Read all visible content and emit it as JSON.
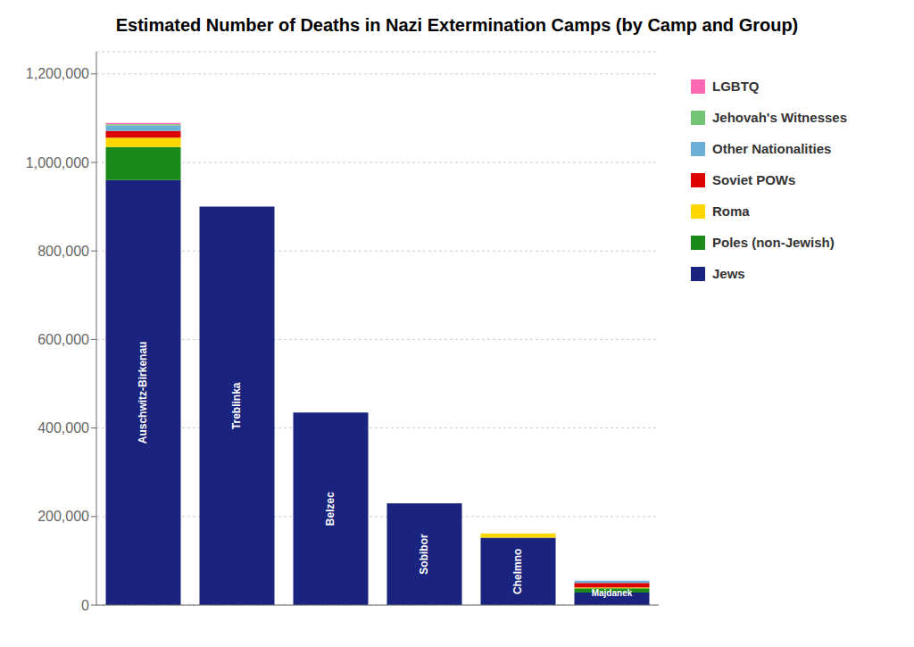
{
  "chart_data": {
    "type": "bar",
    "title": "Estimated Number of Deaths in Nazi Extermination Camps (by Camp and Group)",
    "categories": [
      "Auschwitz-Birkenau",
      "Treblinka",
      "Belzec",
      "Sobibor",
      "Chelmno",
      "Majdanek"
    ],
    "series": [
      {
        "name": "Jews",
        "color": "#1a237e",
        "values": [
          960000,
          900000,
          435000,
          230000,
          152000,
          28000
        ]
      },
      {
        "name": "Poles (non-Jewish)",
        "color": "#1b8a1b",
        "values": [
          75000,
          0,
          0,
          0,
          0,
          10000
        ]
      },
      {
        "name": "Roma",
        "color": "#ffd700",
        "values": [
          21000,
          0,
          0,
          0,
          10000,
          2000
        ]
      },
      {
        "name": "Soviet POWs",
        "color": "#dd0000",
        "values": [
          15000,
          0,
          0,
          0,
          0,
          10000
        ]
      },
      {
        "name": "Other Nationalities",
        "color": "#6baed6",
        "values": [
          12000,
          0,
          0,
          0,
          0,
          5000
        ]
      },
      {
        "name": "Jehovah's Witnesses",
        "color": "#74c476",
        "values": [
          3000,
          0,
          0,
          0,
          0,
          0
        ]
      },
      {
        "name": "LGBTQ",
        "color": "#ff69b4",
        "values": [
          3000,
          0,
          0,
          0,
          0,
          0
        ]
      }
    ],
    "ylim": [
      0,
      1250000
    ],
    "yticks": [
      0,
      {
        "value": 200000,
        "label": "200,000"
      },
      {
        "value": 400000,
        "label": "400,000"
      },
      {
        "value": 600000,
        "label": "600,000"
      },
      {
        "value": 800000,
        "label": "800,000"
      },
      {
        "value": 1000000,
        "label": "1,000,000"
      },
      {
        "value": 1200000,
        "label": "1,200,000"
      }
    ],
    "stacked": true,
    "grid": true,
    "legend": "right",
    "tick_labels": "y"
  }
}
